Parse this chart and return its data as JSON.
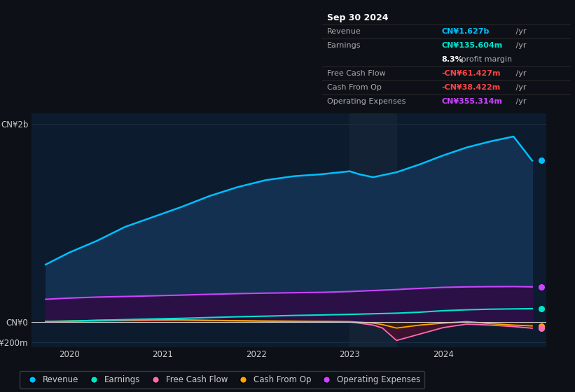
{
  "bg_color": "#0d1117",
  "plot_bg_color": "#0d1b2e",
  "ylim": [
    -250000000,
    2100000000
  ],
  "yticks": [
    -200000000,
    0,
    2000000000
  ],
  "ytick_labels": [
    "-CN¥200m",
    "CN¥0",
    "CN¥2b"
  ],
  "xlim_start": 2019.6,
  "xlim_end": 2025.1,
  "xticks": [
    2020,
    2021,
    2022,
    2023,
    2024
  ],
  "legend_entries": [
    "Revenue",
    "Earnings",
    "Free Cash Flow",
    "Cash From Op",
    "Operating Expenses"
  ],
  "legend_colors": [
    "#00bfff",
    "#00e5cc",
    "#ff69b4",
    "#ffa500",
    "#cc44ff"
  ],
  "info_box": {
    "date": "Sep 30 2024",
    "revenue_label": "Revenue",
    "revenue_value": "CN¥1.627b",
    "revenue_suffix": " /yr",
    "revenue_color": "#00bfff",
    "earnings_label": "Earnings",
    "earnings_value": "CN¥135.604m",
    "earnings_suffix": " /yr",
    "earnings_color": "#00e5cc",
    "margin_bold": "8.3%",
    "margin_rest": " profit margin",
    "fcf_label": "Free Cash Flow",
    "fcf_value": "-CN¥61.427m",
    "fcf_suffix": " /yr",
    "fcf_color": "#ff4444",
    "cashop_label": "Cash From Op",
    "cashop_value": "-CN¥38.422m",
    "cashop_suffix": " /yr",
    "cashop_color": "#ff4444",
    "opex_label": "Operating Expenses",
    "opex_value": "CN¥355.314m",
    "opex_suffix": " /yr",
    "opex_color": "#cc44ff"
  },
  "revenue_x": [
    2019.75,
    2020.0,
    2020.3,
    2020.6,
    2020.9,
    2021.2,
    2021.5,
    2021.8,
    2022.1,
    2022.4,
    2022.7,
    2023.0,
    2023.1,
    2023.25,
    2023.5,
    2023.75,
    2024.0,
    2024.25,
    2024.5,
    2024.75,
    2024.95
  ],
  "revenue_y": [
    580000000,
    700000000,
    820000000,
    960000000,
    1060000000,
    1160000000,
    1270000000,
    1360000000,
    1430000000,
    1470000000,
    1490000000,
    1520000000,
    1490000000,
    1460000000,
    1510000000,
    1590000000,
    1680000000,
    1760000000,
    1820000000,
    1870000000,
    1627000000
  ],
  "revenue_color": "#00bfff",
  "revenue_fill": "#133050",
  "opex_x": [
    2019.75,
    2020.0,
    2020.3,
    2020.6,
    2020.9,
    2021.2,
    2021.5,
    2021.8,
    2022.1,
    2022.4,
    2022.7,
    2023.0,
    2023.25,
    2023.5,
    2023.75,
    2024.0,
    2024.25,
    2024.5,
    2024.75,
    2024.95
  ],
  "opex_y": [
    230000000,
    242000000,
    252000000,
    258000000,
    265000000,
    272000000,
    280000000,
    287000000,
    292000000,
    296000000,
    300000000,
    308000000,
    318000000,
    328000000,
    340000000,
    350000000,
    355000000,
    357000000,
    358000000,
    355314000
  ],
  "opex_color": "#cc44ff",
  "opex_fill": "#2a1045",
  "earnings_x": [
    2019.75,
    2020.0,
    2020.3,
    2020.6,
    2020.9,
    2021.2,
    2021.5,
    2021.8,
    2022.1,
    2022.4,
    2022.7,
    2023.0,
    2023.25,
    2023.5,
    2023.75,
    2024.0,
    2024.25,
    2024.5,
    2024.75,
    2024.95
  ],
  "earnings_y": [
    5000000,
    10000000,
    18000000,
    25000000,
    32000000,
    38000000,
    46000000,
    54000000,
    60000000,
    67000000,
    72000000,
    78000000,
    84000000,
    90000000,
    100000000,
    115000000,
    124000000,
    130000000,
    133000000,
    135604000
  ],
  "earnings_color": "#00e5cc",
  "fcf_x": [
    2019.75,
    2020.0,
    2020.3,
    2020.6,
    2020.9,
    2021.2,
    2021.5,
    2021.8,
    2022.1,
    2022.4,
    2022.7,
    2023.0,
    2023.25,
    2023.35,
    2023.5,
    2023.75,
    2024.0,
    2024.25,
    2024.5,
    2024.75,
    2024.95
  ],
  "fcf_y": [
    5000000,
    8000000,
    12000000,
    15000000,
    18000000,
    20000000,
    16000000,
    12000000,
    8000000,
    6000000,
    4000000,
    2000000,
    -30000000,
    -60000000,
    -185000000,
    -120000000,
    -55000000,
    -20000000,
    -30000000,
    -45000000,
    -61427000
  ],
  "fcf_color": "#ff69b4",
  "fcf_fill": "#4a1030",
  "cop_x": [
    2019.75,
    2020.0,
    2020.3,
    2020.6,
    2020.9,
    2021.2,
    2021.5,
    2021.8,
    2022.1,
    2022.4,
    2022.7,
    2023.0,
    2023.25,
    2023.35,
    2023.5,
    2023.75,
    2024.0,
    2024.25,
    2024.5,
    2024.75,
    2024.95
  ],
  "cop_y": [
    8000000,
    12000000,
    18000000,
    22000000,
    25000000,
    22000000,
    18000000,
    15000000,
    12000000,
    10000000,
    8000000,
    5000000,
    -10000000,
    -25000000,
    -60000000,
    -30000000,
    -10000000,
    5000000,
    -15000000,
    -30000000,
    -38422000
  ],
  "cop_color": "#ffa500",
  "cop_fill": "#3a2000",
  "dot_y": {
    "revenue": 1627000000,
    "opex": 355314000,
    "earnings": 135604000,
    "cop": -38422000,
    "fcf": -61427000
  },
  "dot_colors": {
    "revenue": "#00bfff",
    "opex": "#cc44ff",
    "earnings": "#00e5cc",
    "cop": "#ffa500",
    "fcf": "#ff69b4"
  }
}
